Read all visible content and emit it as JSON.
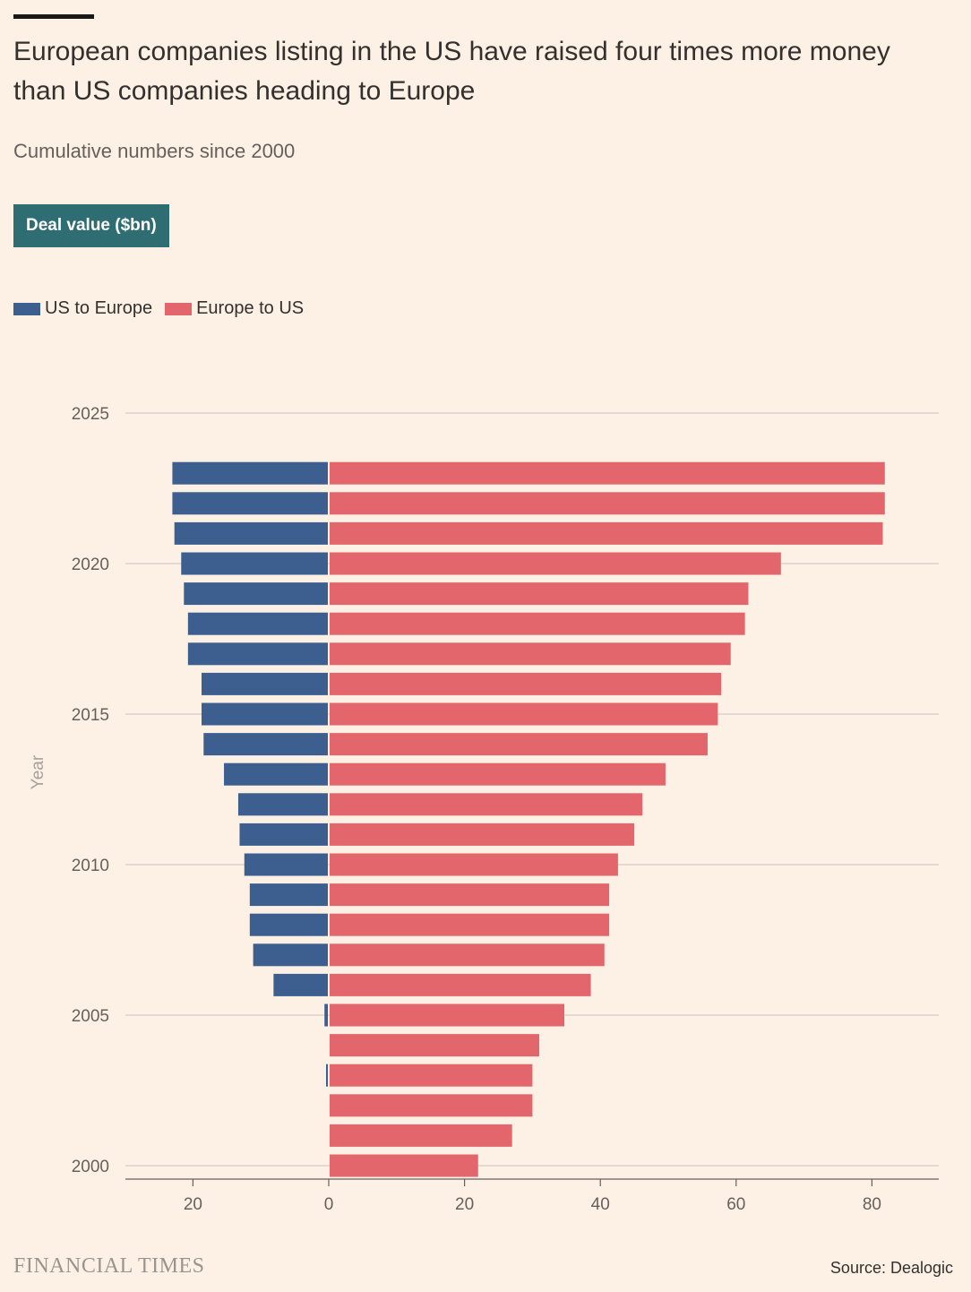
{
  "header": {
    "title": "European companies listing in the US have raised four times more money than US companies heading to Europe",
    "subtitle": "Cumulative numbers since 2000",
    "toggle_label": "Deal value ($bn)"
  },
  "legend": [
    {
      "label": "US to Europe",
      "color": "#3d5f8f"
    },
    {
      "label": "Europe to US",
      "color": "#e3666c"
    }
  ],
  "footer": {
    "logo": "FINANCIAL TIMES",
    "source": "Source: Dealogic"
  },
  "chart_data": {
    "type": "bar",
    "orientation": "horizontal-diverging",
    "title": "European companies listing in the US have raised four times more money than US companies heading to Europe",
    "subtitle": "Cumulative numbers since 2000",
    "ylabel": "Year",
    "xlabel": "",
    "ylim": [
      2000,
      2025
    ],
    "xlim": [
      -30,
      90
    ],
    "yticks": [
      2000,
      2005,
      2010,
      2015,
      2020,
      2025
    ],
    "xticks": [
      -20,
      0,
      20,
      40,
      60,
      80
    ],
    "xtick_labels": [
      "20",
      "0",
      "20",
      "40",
      "60",
      "80"
    ],
    "grid": true,
    "legend_position": "top-left",
    "categories": [
      2000,
      2001,
      2002,
      2003,
      2004,
      2005,
      2006,
      2007,
      2008,
      2009,
      2010,
      2011,
      2012,
      2013,
      2014,
      2015,
      2016,
      2017,
      2018,
      2019,
      2020,
      2021,
      2022,
      2023
    ],
    "series": [
      {
        "name": "US to Europe",
        "color": "#3d5f8f",
        "values": [
          0,
          0,
          0,
          0.2,
          0,
          0.5,
          8,
          11,
          11.5,
          11.5,
          12.3,
          13,
          13.2,
          15.3,
          18.3,
          18.6,
          18.6,
          20.6,
          20.6,
          21.2,
          21.6,
          22.6,
          22.9,
          22.9
        ]
      },
      {
        "name": "Europe to US",
        "color": "#e3666c",
        "values": [
          22,
          27,
          30,
          30,
          31,
          34.7,
          38.6,
          40.6,
          41.3,
          41.3,
          42.6,
          45,
          46.2,
          49.6,
          55.8,
          57.3,
          57.8,
          59.2,
          61.3,
          61.8,
          66.6,
          81.6,
          81.9,
          81.9
        ]
      }
    ]
  }
}
